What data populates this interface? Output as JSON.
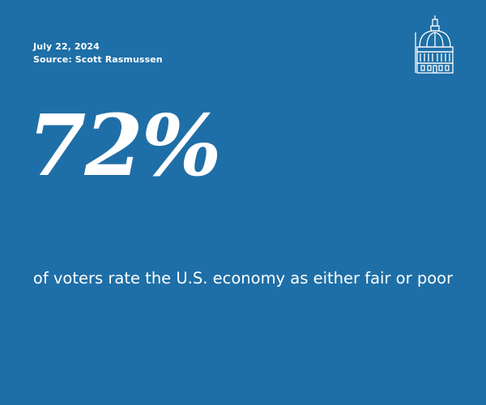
{
  "header": {
    "date": "July 22, 2024",
    "source": "Source: Scott Rasmussen"
  },
  "stat": {
    "value": "72%",
    "caption": "of voters rate the U.S. economy as either fair or poor"
  }
}
